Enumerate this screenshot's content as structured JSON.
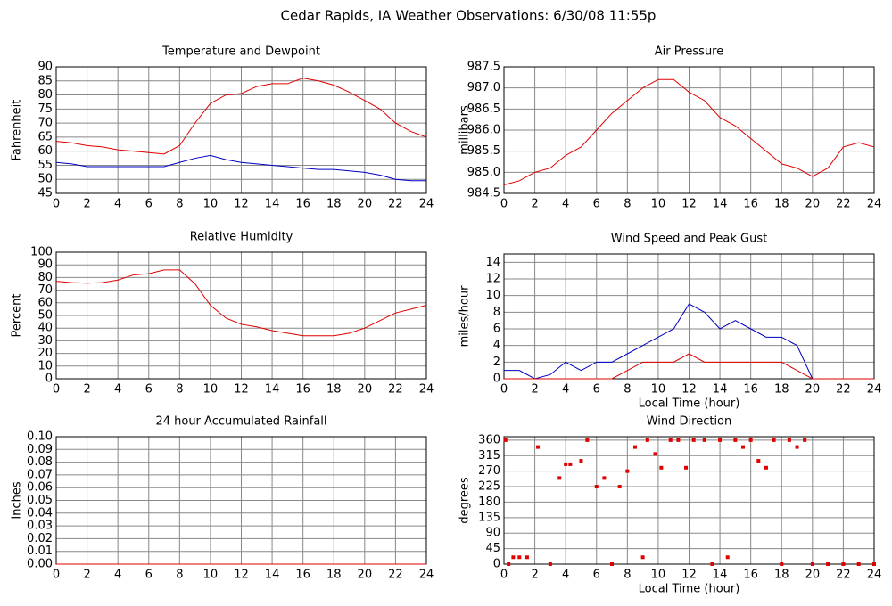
{
  "title": "Cedar Rapids, IA Weather Observations: 6/30/08 11:55p",
  "chart_data": [
    {
      "type": "line",
      "title": "Temperature and Dewpoint",
      "ylabel": "Fahrenheit",
      "grid": true,
      "x": [
        0,
        1,
        2,
        3,
        4,
        5,
        6,
        7,
        8,
        9,
        10,
        11,
        12,
        13,
        14,
        15,
        16,
        17,
        18,
        19,
        20,
        21,
        22,
        23,
        24
      ],
      "series": [
        {
          "name": "Temperature",
          "color": "#e00000",
          "values": [
            63.5,
            63,
            62,
            61.5,
            60.5,
            60,
            59.5,
            59,
            62,
            70,
            77,
            80,
            80.5,
            83,
            84,
            84,
            86,
            85,
            83.5,
            81,
            78,
            75,
            70,
            67,
            65
          ]
        },
        {
          "name": "Dewpoint",
          "color": "#0000c0",
          "values": [
            56,
            55.5,
            54.5,
            54.5,
            54.5,
            54.5,
            54.5,
            54.5,
            56,
            57.5,
            58.5,
            57,
            56,
            55.5,
            55,
            54.5,
            54,
            53.5,
            53.5,
            53,
            52.5,
            51.5,
            50,
            49.5,
            49.5
          ]
        }
      ],
      "xlim": [
        0,
        24
      ],
      "xticks": [
        0,
        2,
        4,
        6,
        8,
        10,
        12,
        14,
        16,
        18,
        20,
        22,
        24
      ],
      "ylim": [
        45,
        90
      ],
      "yticks": [
        45,
        50,
        55,
        60,
        65,
        70,
        75,
        80,
        85,
        90
      ]
    },
    {
      "type": "line",
      "title": "Air Pressure",
      "ylabel": "millibars",
      "grid": true,
      "x": [
        0,
        1,
        2,
        3,
        4,
        5,
        6,
        7,
        8,
        9,
        10,
        11,
        12,
        13,
        14,
        15,
        16,
        17,
        18,
        19,
        20,
        21,
        22,
        23,
        24
      ],
      "series": [
        {
          "name": "Pressure",
          "color": "#e00000",
          "values": [
            984.7,
            984.8,
            985.0,
            985.1,
            985.4,
            985.6,
            986.0,
            986.4,
            986.7,
            987.0,
            987.2,
            987.2,
            986.9,
            986.7,
            986.3,
            986.1,
            985.8,
            985.5,
            985.2,
            985.1,
            984.9,
            985.1,
            985.6,
            985.7,
            985.6
          ]
        }
      ],
      "xlim": [
        0,
        24
      ],
      "xticks": [
        0,
        2,
        4,
        6,
        8,
        10,
        12,
        14,
        16,
        18,
        20,
        22,
        24
      ],
      "ylim": [
        984.5,
        987.5
      ],
      "yticks": [
        984.5,
        {
          "value": 985,
          "label": "985.0"
        },
        985.5,
        {
          "value": 986,
          "label": "986.0"
        },
        986.5,
        {
          "value": 987,
          "label": "987.0"
        },
        987.5
      ]
    },
    {
      "type": "line",
      "title": "Relative Humidity",
      "ylabel": "Percent",
      "grid": true,
      "x": [
        0,
        1,
        2,
        3,
        4,
        5,
        6,
        7,
        8,
        9,
        10,
        11,
        12,
        13,
        14,
        15,
        16,
        17,
        18,
        19,
        20,
        21,
        22,
        23,
        24
      ],
      "series": [
        {
          "name": "Relative Humidity",
          "color": "#e00000",
          "values": [
            77,
            76,
            75.5,
            76,
            78,
            82,
            83,
            86,
            86,
            75,
            58,
            48,
            43,
            41,
            38,
            36,
            34,
            34,
            34,
            36,
            40,
            46,
            52,
            55,
            58
          ]
        }
      ],
      "xlim": [
        0,
        24
      ],
      "xticks": [
        0,
        2,
        4,
        6,
        8,
        10,
        12,
        14,
        16,
        18,
        20,
        22,
        24
      ],
      "ylim": [
        0,
        100
      ],
      "yticks": [
        0,
        10,
        20,
        30,
        40,
        50,
        60,
        70,
        80,
        90,
        100
      ]
    },
    {
      "type": "line",
      "title": "Wind Speed and Peak Gust",
      "ylabel": "miles/hour",
      "xlabel": "Local Time (hour)",
      "grid": true,
      "x": [
        0,
        1,
        2,
        3,
        4,
        5,
        6,
        7,
        8,
        9,
        10,
        11,
        12,
        13,
        14,
        15,
        16,
        17,
        18,
        19,
        20,
        21,
        22,
        23,
        24
      ],
      "series": [
        {
          "name": "Wind Speed",
          "color": "#0000c0",
          "values": [
            1,
            1,
            0,
            0.5,
            2,
            1,
            2,
            2,
            3,
            4,
            5,
            6,
            9,
            8,
            6,
            7,
            6,
            5,
            5,
            4,
            0,
            0,
            0,
            0,
            0
          ]
        },
        {
          "name": "Peak Gust",
          "color": "#e00000",
          "values": [
            0,
            0,
            0,
            0,
            0,
            0,
            0,
            0,
            1,
            2,
            2,
            2,
            3,
            2,
            2,
            2,
            2,
            2,
            2,
            1,
            0,
            0,
            0,
            0,
            0
          ]
        }
      ],
      "xlim": [
        0,
        24
      ],
      "xticks": [
        0,
        2,
        4,
        6,
        8,
        10,
        12,
        14,
        16,
        18,
        20,
        22,
        24
      ],
      "ylim": [
        0,
        15
      ],
      "yticks": [
        0,
        2,
        4,
        6,
        8,
        10,
        12,
        14
      ]
    },
    {
      "type": "line",
      "title": "24 hour Accumulated Rainfall",
      "ylabel": "Inches",
      "grid": true,
      "x": [
        0,
        24
      ],
      "series": [
        {
          "name": "Rainfall",
          "color": "#e00000",
          "values": [
            0,
            0
          ]
        }
      ],
      "xlim": [
        0,
        24
      ],
      "xticks": [
        0,
        2,
        4,
        6,
        8,
        10,
        12,
        14,
        16,
        18,
        20,
        22,
        24
      ],
      "ylim": [
        0,
        0.1
      ],
      "yticks": [
        {
          "value": 0,
          "label": "0.00"
        },
        {
          "value": 0.01,
          "label": "0.01"
        },
        {
          "value": 0.02,
          "label": "0.02"
        },
        {
          "value": 0.03,
          "label": "0.03"
        },
        {
          "value": 0.04,
          "label": "0.04"
        },
        {
          "value": 0.05,
          "label": "0.05"
        },
        {
          "value": 0.06,
          "label": "0.06"
        },
        {
          "value": 0.07,
          "label": "0.07"
        },
        {
          "value": 0.08,
          "label": "0.08"
        },
        {
          "value": 0.09,
          "label": "0.09"
        },
        {
          "value": 0.1,
          "label": "0.10"
        }
      ]
    },
    {
      "type": "scatter",
      "title": "Wind Direction",
      "ylabel": "degrees",
      "xlabel": "Local Time (hour)",
      "grid": true,
      "x": [
        0.1,
        0.3,
        0.6,
        1,
        1.5,
        2.2,
        3,
        3.6,
        4,
        4.3,
        5,
        5.4,
        6,
        6.5,
        7,
        7.5,
        8,
        8.5,
        9,
        9.3,
        9.8,
        10.2,
        10.8,
        11.3,
        11.8,
        12.3,
        13,
        13.5,
        14,
        14.5,
        15,
        15.5,
        16,
        16.5,
        17,
        17.5,
        18,
        18.5,
        19,
        19.5,
        20,
        21,
        22,
        23,
        24
      ],
      "series": [
        {
          "name": "Wind Direction",
          "color": "#e00000",
          "values": [
            360,
            0,
            20,
            20,
            20,
            340,
            0,
            250,
            290,
            290,
            300,
            360,
            225,
            250,
            0,
            225,
            270,
            340,
            20,
            360,
            320,
            280,
            360,
            360,
            280,
            360,
            360,
            0,
            360,
            20,
            360,
            340,
            360,
            300,
            280,
            360,
            0,
            360,
            340,
            360,
            0,
            0,
            0,
            0,
            0
          ]
        }
      ],
      "xlim": [
        0,
        24
      ],
      "xticks": [
        0,
        2,
        4,
        6,
        8,
        10,
        12,
        14,
        16,
        18,
        20,
        22,
        24
      ],
      "ylim": [
        0,
        370
      ],
      "yticks": [
        0,
        45,
        90,
        135,
        180,
        225,
        270,
        315,
        360
      ]
    }
  ]
}
